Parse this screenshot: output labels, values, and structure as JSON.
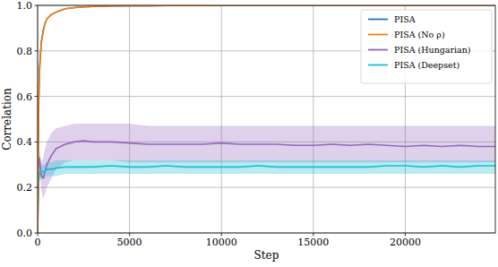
{
  "chart_data": {
    "type": "line",
    "x_label": "Step",
    "y_label": "Correlation",
    "x": [
      0,
      50,
      100,
      200,
      300,
      400,
      500,
      750,
      1000,
      1500,
      2000,
      2500,
      3000,
      4000,
      5000,
      6000,
      7000,
      8000,
      9000,
      10000,
      11000,
      12000,
      13000,
      14000,
      15000,
      16000,
      17000,
      18000,
      19000,
      20000,
      21000,
      22000,
      23000,
      24000,
      24900
    ],
    "xlim": [
      0,
      24900
    ],
    "xticks": [
      0,
      5000,
      10000,
      15000,
      20000
    ],
    "ylim": [
      0,
      1
    ],
    "yticks": [
      {
        "value": 0,
        "label": "0.0"
      },
      {
        "value": 0.2,
        "label": "0.2"
      },
      {
        "value": 0.4,
        "label": "0.4"
      },
      {
        "value": 0.6,
        "label": "0.6"
      },
      {
        "value": 0.8,
        "label": "0.8"
      },
      {
        "value": 1,
        "label": "1.0"
      }
    ],
    "grid": true,
    "legend": "upper right",
    "series": [
      {
        "name": "PISA",
        "color": "#1f77b4",
        "values": [
          0,
          0.55,
          0.72,
          0.84,
          0.89,
          0.92,
          0.94,
          0.96,
          0.97,
          0.985,
          0.99,
          0.993,
          0.995,
          0.997,
          0.998,
          0.998,
          0.999,
          0.999,
          0.999,
          1,
          1,
          1,
          1,
          1,
          1,
          1,
          1,
          1,
          1,
          1,
          1,
          1,
          1,
          1,
          1
        ]
      },
      {
        "name": "PISA (No ρ)",
        "color": "#ff7f0e",
        "values": [
          0,
          0.5,
          0.7,
          0.83,
          0.88,
          0.92,
          0.94,
          0.96,
          0.97,
          0.985,
          0.99,
          0.993,
          0.995,
          0.997,
          0.998,
          0.998,
          0.999,
          0.999,
          0.999,
          1,
          1,
          1,
          1,
          1,
          1,
          1,
          1,
          1,
          1,
          1,
          1,
          1,
          1,
          1,
          1
        ]
      },
      {
        "name": "PISA (Hungarian)",
        "color": "#9467bd",
        "values": [
          0,
          0.3,
          0.33,
          0.25,
          0.24,
          0.27,
          0.3,
          0.34,
          0.37,
          0.39,
          0.4,
          0.405,
          0.4,
          0.4,
          0.395,
          0.39,
          0.39,
          0.39,
          0.39,
          0.395,
          0.39,
          0.39,
          0.39,
          0.385,
          0.385,
          0.39,
          0.385,
          0.39,
          0.385,
          0.38,
          0.385,
          0.38,
          0.385,
          0.38,
          0.38
        ],
        "lower": [
          0,
          0.28,
          0.3,
          0.19,
          0.15,
          0.17,
          0.2,
          0.24,
          0.28,
          0.31,
          0.32,
          0.32,
          0.32,
          0.32,
          0.31,
          0.31,
          0.31,
          0.31,
          0.31,
          0.31,
          0.31,
          0.31,
          0.31,
          0.31,
          0.31,
          0.31,
          0.31,
          0.31,
          0.31,
          0.31,
          0.31,
          0.31,
          0.31,
          0.31,
          0.31
        ],
        "upper": [
          0,
          0.32,
          0.36,
          0.31,
          0.33,
          0.37,
          0.4,
          0.44,
          0.46,
          0.47,
          0.48,
          0.48,
          0.48,
          0.48,
          0.48,
          0.47,
          0.47,
          0.47,
          0.47,
          0.47,
          0.47,
          0.47,
          0.47,
          0.47,
          0.47,
          0.47,
          0.47,
          0.47,
          0.47,
          0.47,
          0.47,
          0.47,
          0.47,
          0.47,
          0.47
        ]
      },
      {
        "name": "PISA (Deepset)",
        "color": "#17becf",
        "values": [
          0,
          0.22,
          0.26,
          0.27,
          0.27,
          0.27,
          0.28,
          0.28,
          0.285,
          0.29,
          0.29,
          0.29,
          0.29,
          0.295,
          0.29,
          0.29,
          0.295,
          0.29,
          0.29,
          0.29,
          0.29,
          0.295,
          0.29,
          0.29,
          0.29,
          0.29,
          0.29,
          0.29,
          0.295,
          0.295,
          0.29,
          0.295,
          0.29,
          0.295,
          0.295
        ],
        "lower": [
          0,
          0.18,
          0.23,
          0.24,
          0.24,
          0.24,
          0.25,
          0.25,
          0.25,
          0.26,
          0.26,
          0.26,
          0.26,
          0.26,
          0.26,
          0.26,
          0.26,
          0.26,
          0.26,
          0.26,
          0.26,
          0.26,
          0.26,
          0.26,
          0.26,
          0.26,
          0.26,
          0.26,
          0.26,
          0.26,
          0.26,
          0.26,
          0.26,
          0.26,
          0.26
        ],
        "upper": [
          0,
          0.26,
          0.29,
          0.3,
          0.3,
          0.3,
          0.31,
          0.31,
          0.32,
          0.32,
          0.32,
          0.32,
          0.32,
          0.32,
          0.32,
          0.32,
          0.32,
          0.32,
          0.32,
          0.32,
          0.32,
          0.32,
          0.32,
          0.32,
          0.32,
          0.32,
          0.32,
          0.32,
          0.32,
          0.32,
          0.32,
          0.32,
          0.32,
          0.32,
          0.32
        ]
      }
    ]
  }
}
